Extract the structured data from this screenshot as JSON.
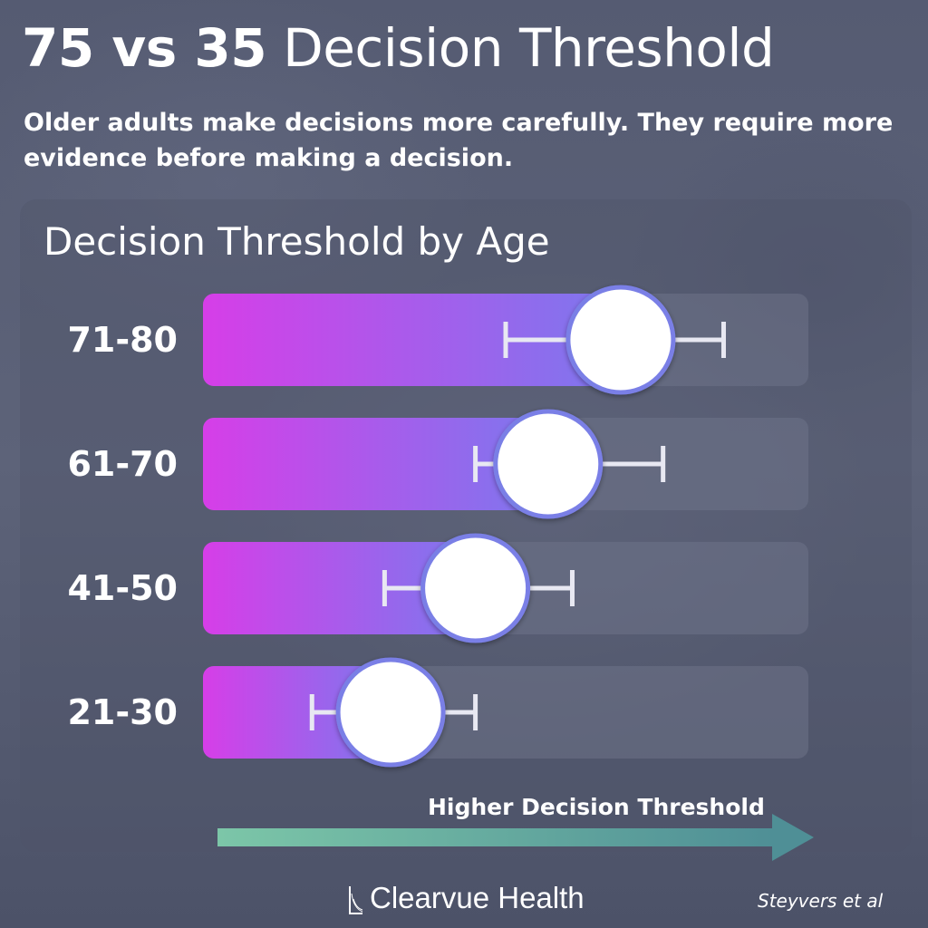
{
  "header": {
    "title_bold": "75 vs 35",
    "title_rest": " Decision Threshold",
    "subtitle": "Older adults make decisions more carefully. They require more evidence before making a decision."
  },
  "chart_data": {
    "type": "bar",
    "title": "Decision Threshold by Age",
    "categories": [
      "71-80",
      "61-70",
      "41-50",
      "21-30"
    ],
    "values": [
      0.69,
      0.57,
      0.45,
      0.31
    ],
    "error_low": [
      0.5,
      0.45,
      0.3,
      0.18
    ],
    "error_high": [
      0.86,
      0.76,
      0.61,
      0.45
    ],
    "xlim": [
      0,
      1
    ],
    "xlabel": "Higher Decision Threshold",
    "bar_gradient": [
      "#d63ee8",
      "#7c78ee"
    ],
    "marker_color": "#ffffff",
    "marker_edge": "#7a7fe6",
    "grid": false,
    "legend": "none"
  },
  "footer": {
    "brand": "Clearvue Health",
    "source": "Steyvers et al"
  },
  "colors": {
    "arrow": "#4f8f96",
    "arrow_light": "#7cc6a8",
    "track": "#6e7288"
  }
}
